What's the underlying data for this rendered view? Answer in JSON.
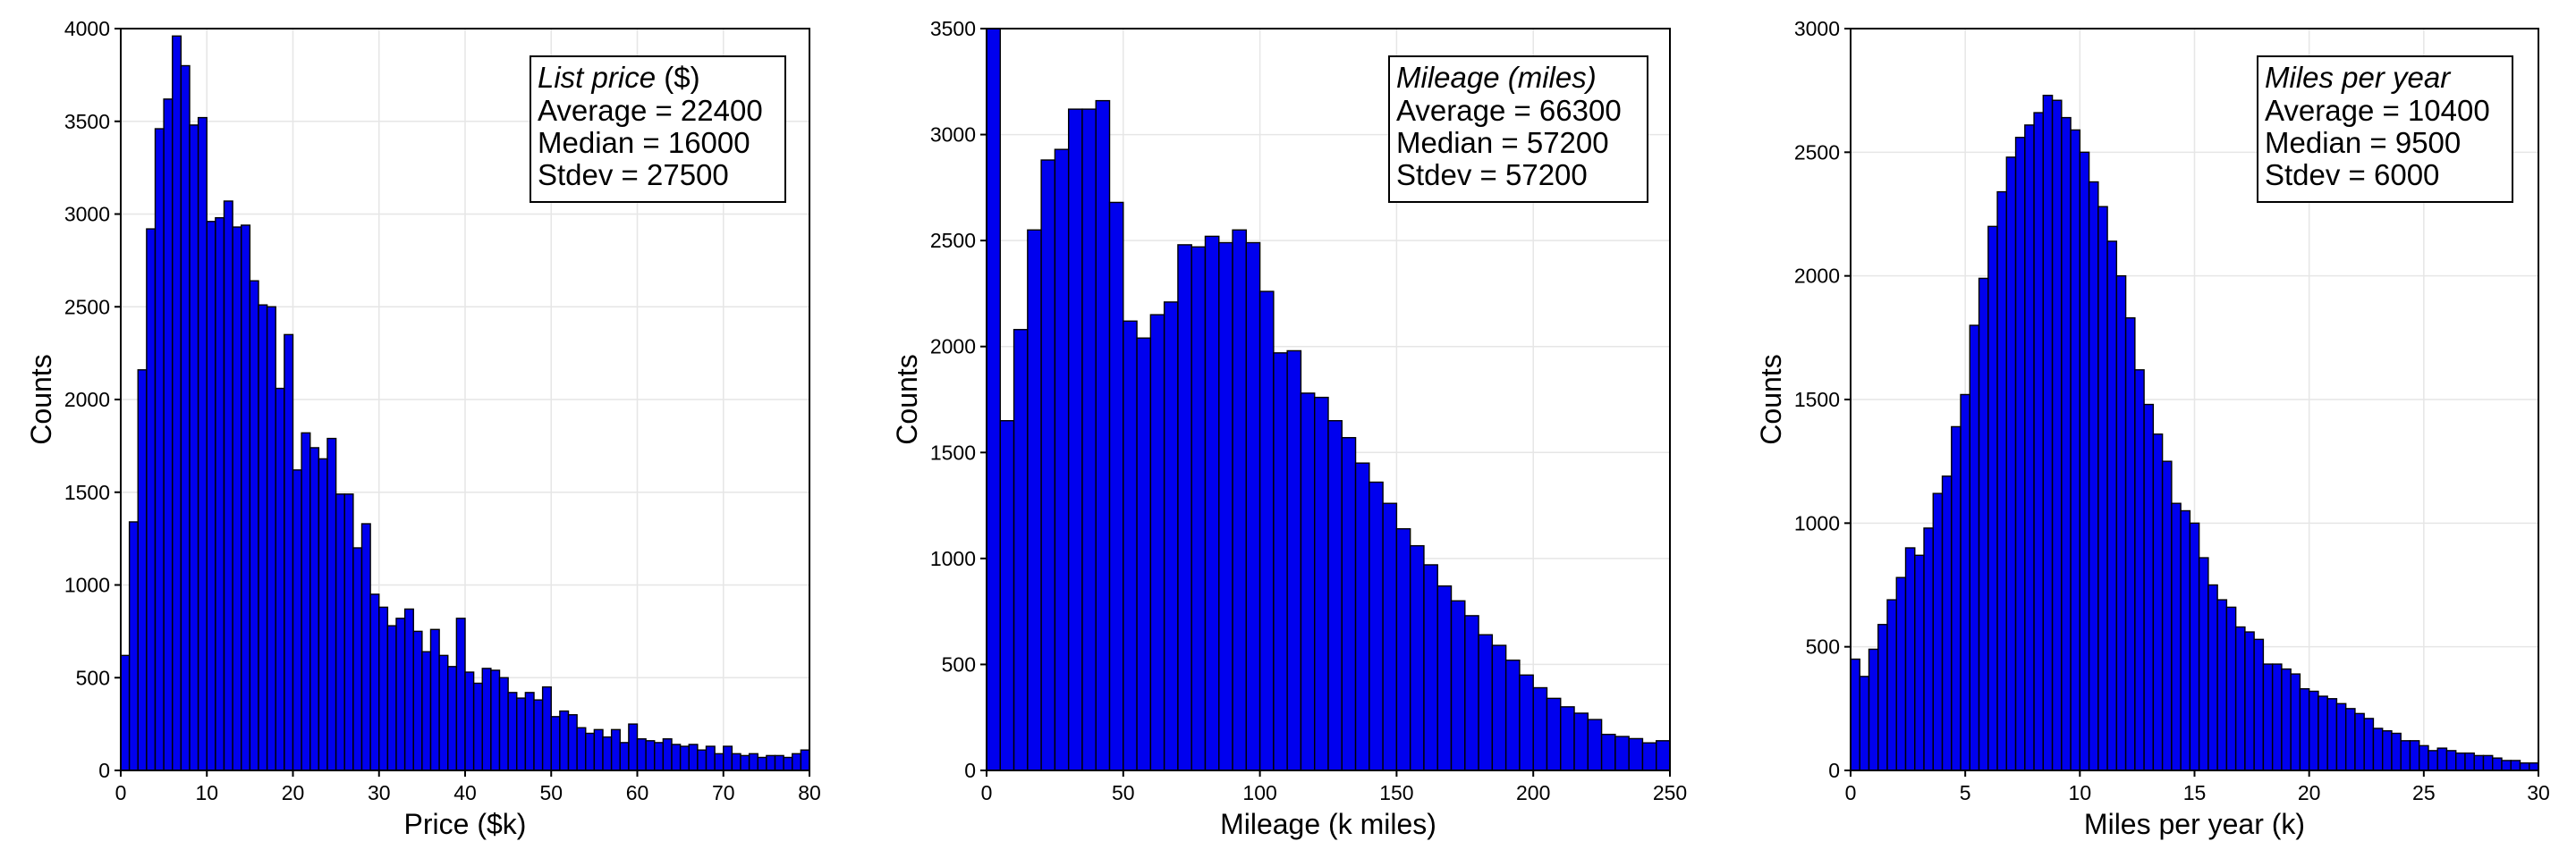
{
  "chart_data": [
    {
      "type": "bar",
      "bin_width": 1,
      "x": [
        0.5,
        1.5,
        2.5,
        3.5,
        4.5,
        5.5,
        6.5,
        7.5,
        8.5,
        9.5,
        10.5,
        11.5,
        12.5,
        13.5,
        14.5,
        15.5,
        16.5,
        17.5,
        18.5,
        19.5,
        20.5,
        21.5,
        22.5,
        23.5,
        24.5,
        25.5,
        26.5,
        27.5,
        28.5,
        29.5,
        30.5,
        31.5,
        32.5,
        33.5,
        34.5,
        35.5,
        36.5,
        37.5,
        38.5,
        39.5,
        40.5,
        41.5,
        42.5,
        43.5,
        44.5,
        45.5,
        46.5,
        47.5,
        48.5,
        49.5,
        50.5,
        51.5,
        52.5,
        53.5,
        54.5,
        55.5,
        56.5,
        57.5,
        58.5,
        59.5,
        60.5,
        61.5,
        62.5,
        63.5,
        64.5,
        65.5,
        66.5,
        67.5,
        68.5,
        69.5,
        70.5,
        71.5,
        72.5,
        73.5,
        74.5,
        75.5,
        76.5,
        77.5,
        78.5,
        79.5
      ],
      "values": [
        620,
        1340,
        2160,
        2920,
        3460,
        3620,
        3960,
        3800,
        3480,
        3520,
        2960,
        2980,
        3070,
        2930,
        2940,
        2640,
        2510,
        2500,
        2060,
        2350,
        1620,
        1820,
        1740,
        1680,
        1790,
        1490,
        1490,
        1200,
        1330,
        950,
        880,
        780,
        820,
        870,
        750,
        640,
        760,
        620,
        560,
        820,
        530,
        470,
        550,
        540,
        500,
        420,
        390,
        420,
        380,
        450,
        290,
        320,
        300,
        230,
        200,
        220,
        180,
        220,
        150,
        250,
        170,
        160,
        150,
        170,
        140,
        130,
        140,
        110,
        130,
        90,
        130,
        90,
        80,
        90,
        70,
        80,
        80,
        70,
        90,
        110
      ],
      "title": "",
      "xlabel": "Price ($k)",
      "ylabel": "Counts",
      "xlim": [
        0,
        80
      ],
      "ylim": [
        0,
        4000
      ],
      "xticks": [
        0,
        10,
        20,
        30,
        40,
        50,
        60,
        70,
        80
      ],
      "yticks": [
        0,
        500,
        1000,
        1500,
        2000,
        2500,
        3000,
        3500,
        4000
      ],
      "bar_color": "#0000ee",
      "grid": true,
      "stats": {
        "title": "List price",
        "title_unit": "($)",
        "lines": [
          "Average = 22400",
          "Median = 16000",
          "Stdev = 27500"
        ]
      }
    },
    {
      "type": "bar",
      "bin_width": 5,
      "x": [
        2.5,
        7.5,
        12.5,
        17.5,
        22.5,
        27.5,
        32.5,
        37.5,
        42.5,
        47.5,
        52.5,
        57.5,
        62.5,
        67.5,
        72.5,
        77.5,
        82.5,
        87.5,
        92.5,
        97.5,
        102.5,
        107.5,
        112.5,
        117.5,
        122.5,
        127.5,
        132.5,
        137.5,
        142.5,
        147.5,
        152.5,
        157.5,
        162.5,
        167.5,
        172.5,
        177.5,
        182.5,
        187.5,
        192.5,
        197.5,
        202.5,
        207.5,
        212.5,
        217.5,
        222.5,
        227.5,
        232.5,
        237.5,
        242.5,
        247.5
      ],
      "values": [
        3500,
        1650,
        2080,
        2550,
        2880,
        2930,
        3120,
        3120,
        3160,
        2680,
        2120,
        2040,
        2150,
        2210,
        2480,
        2470,
        2520,
        2490,
        2550,
        2490,
        2260,
        1970,
        1980,
        1780,
        1760,
        1650,
        1570,
        1450,
        1360,
        1260,
        1140,
        1060,
        970,
        870,
        800,
        730,
        640,
        590,
        520,
        450,
        390,
        340,
        300,
        270,
        240,
        170,
        160,
        150,
        130,
        140
      ],
      "title": "",
      "xlabel": "Mileage (k miles)",
      "ylabel": "Counts",
      "xlim": [
        0,
        250
      ],
      "ylim": [
        0,
        3500
      ],
      "xticks": [
        0,
        50,
        100,
        150,
        200,
        250
      ],
      "yticks": [
        0,
        500,
        1000,
        1500,
        2000,
        2500,
        3000,
        3500
      ],
      "bar_color": "#0000ee",
      "grid": true,
      "stats": {
        "title": "Mileage",
        "title_unit": "(miles)",
        "title_unit_italic": true,
        "lines": [
          "Average = 66300",
          "Median = 57200",
          "Stdev = 57200"
        ]
      }
    },
    {
      "type": "bar",
      "bin_width": 0.4,
      "x": [
        0.2,
        0.6,
        1.0,
        1.4,
        1.8,
        2.2,
        2.6,
        3.0,
        3.4,
        3.8,
        4.2,
        4.6,
        5.0,
        5.4,
        5.8,
        6.2,
        6.6,
        7.0,
        7.4,
        7.8,
        8.2,
        8.6,
        9.0,
        9.4,
        9.8,
        10.2,
        10.6,
        11.0,
        11.4,
        11.8,
        12.2,
        12.6,
        13.0,
        13.4,
        13.8,
        14.2,
        14.6,
        15.0,
        15.4,
        15.8,
        16.2,
        16.6,
        17.0,
        17.4,
        17.8,
        18.2,
        18.6,
        19.0,
        19.4,
        19.8,
        20.2,
        20.6,
        21.0,
        21.4,
        21.8,
        22.2,
        22.6,
        23.0,
        23.4,
        23.8,
        24.2,
        24.6,
        25.0,
        25.4,
        25.8,
        26.2,
        26.6,
        27.0,
        27.4,
        27.8,
        28.2,
        28.6,
        29.0,
        29.4,
        29.8
      ],
      "values": [
        450,
        380,
        490,
        590,
        690,
        780,
        900,
        870,
        980,
        1120,
        1190,
        1390,
        1520,
        1800,
        1990,
        2200,
        2340,
        2480,
        2560,
        2610,
        2660,
        2730,
        2710,
        2640,
        2590,
        2500,
        2380,
        2280,
        2140,
        2000,
        1830,
        1620,
        1480,
        1360,
        1250,
        1080,
        1050,
        1000,
        860,
        750,
        690,
        660,
        580,
        560,
        530,
        430,
        430,
        410,
        390,
        330,
        320,
        300,
        290,
        270,
        250,
        230,
        210,
        170,
        160,
        150,
        120,
        120,
        100,
        80,
        90,
        80,
        70,
        70,
        60,
        60,
        50,
        40,
        40,
        30,
        30
      ],
      "title": "",
      "xlabel": "Miles per year (k)",
      "ylabel": "Counts",
      "xlim": [
        0,
        30
      ],
      "ylim": [
        0,
        3000
      ],
      "xticks": [
        0,
        5,
        10,
        15,
        20,
        25,
        30
      ],
      "yticks": [
        0,
        500,
        1000,
        1500,
        2000,
        2500,
        3000
      ],
      "bar_color": "#0000ee",
      "grid": true,
      "stats": {
        "title": "Miles per year",
        "title_unit": "",
        "lines": [
          "Average = 10400",
          "Median = 9500",
          "Stdev = 6000"
        ]
      }
    }
  ]
}
